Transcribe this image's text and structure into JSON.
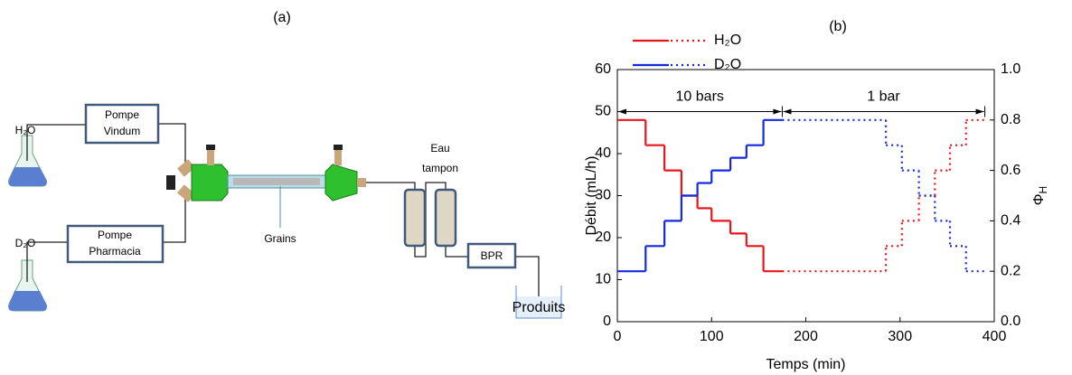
{
  "diagram": {
    "panel_label": "(a)",
    "inlet_1": "H₂O",
    "inlet_2": "D₂O",
    "pump_1": [
      "Pompe",
      "Vindum"
    ],
    "pump_2": [
      "Pompe",
      "Pharmacia"
    ],
    "grains": "Grains",
    "buffer": [
      "Eau",
      "tampon"
    ],
    "bpr": "BPR",
    "products": "Produits"
  },
  "chart_data": {
    "type": "step",
    "title": "(b)",
    "x_label": "Temps (min)",
    "y_label": "Débit (mL/h)",
    "y2_label": {
      "symbol": "Φ",
      "subscript": "H"
    },
    "edges": [
      0,
      30,
      50,
      68,
      85,
      100,
      120,
      137,
      155,
      175,
      285,
      302,
      320,
      337,
      353,
      370,
      390
    ],
    "dotted_after": 175,
    "series": [
      {
        "name": "H₂O",
        "color": "#e8141b",
        "values": [
          48,
          42,
          36,
          30,
          27,
          24,
          21,
          18,
          12,
          12,
          18,
          24,
          30,
          36,
          42,
          48
        ]
      },
      {
        "name": "D₂O",
        "color": "#1428e0",
        "values": [
          12,
          18,
          24,
          30,
          33,
          36,
          39,
          42,
          48,
          48,
          42,
          36,
          30,
          24,
          18,
          12
        ]
      }
    ],
    "annotations": [
      {
        "text": "10 bars",
        "x": [
          0,
          175
        ],
        "y": 50
      },
      {
        "text": "1 bar",
        "x": [
          175,
          390
        ],
        "y": 50
      }
    ],
    "xlim": [
      0,
      400
    ],
    "xticks": [
      0,
      100,
      200,
      300,
      400
    ],
    "ylim": [
      0,
      60
    ],
    "yticks": [
      0,
      10,
      20,
      30,
      40,
      50,
      60
    ],
    "y2lim": [
      0,
      1
    ],
    "y2ticks": [
      {
        "value": 0,
        "label": "0.0"
      },
      0.2,
      0.4,
      0.6,
      0.8,
      {
        "value": 1,
        "label": "1.0"
      }
    ]
  }
}
